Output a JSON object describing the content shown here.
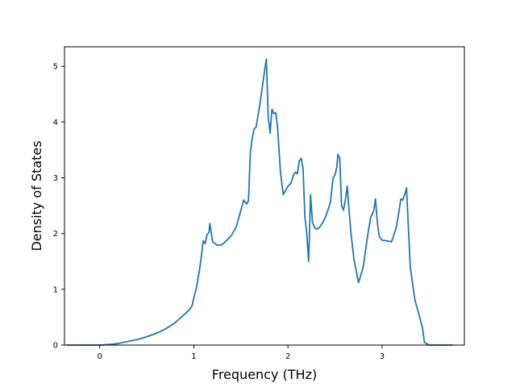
{
  "chart_data": {
    "type": "line",
    "title": "",
    "xlabel": "Frequency (THz)",
    "ylabel": "Density of States",
    "xlim": [
      -0.375,
      3.875
    ],
    "ylim": [
      0,
      5.35
    ],
    "xticks": [
      0,
      1,
      2,
      3
    ],
    "yticks": [
      0,
      1,
      2,
      3,
      4,
      5
    ],
    "grid": false,
    "legend": "none",
    "line_color": "#1f77b4",
    "series": [
      {
        "x": [
          -0.35,
          -0.2,
          0.0,
          0.1,
          0.2,
          0.28,
          0.4,
          0.5,
          0.6,
          0.7,
          0.8,
          0.9,
          0.95,
          0.98,
          1.0,
          1.03,
          1.06,
          1.08,
          1.1,
          1.12,
          1.14,
          1.16,
          1.17,
          1.2,
          1.25,
          1.3,
          1.35,
          1.4,
          1.45,
          1.5,
          1.53,
          1.56,
          1.58,
          1.6,
          1.62,
          1.64,
          1.66,
          1.7,
          1.75,
          1.77,
          1.79,
          1.81,
          1.83,
          1.85,
          1.87,
          1.89,
          1.92,
          1.95,
          2.0,
          2.03,
          2.06,
          2.08,
          2.1,
          2.12,
          2.14,
          2.16,
          2.18,
          2.2,
          2.22,
          2.24,
          2.26,
          2.28,
          2.3,
          2.33,
          2.37,
          2.4,
          2.45,
          2.48,
          2.5,
          2.52,
          2.53,
          2.55,
          2.57,
          2.59,
          2.61,
          2.63,
          2.65,
          2.67,
          2.7,
          2.75,
          2.8,
          2.85,
          2.88,
          2.91,
          2.93,
          2.95,
          2.97,
          3.0,
          3.05,
          3.1,
          3.15,
          3.18,
          3.2,
          3.22,
          3.24,
          3.26,
          3.28,
          3.3,
          3.35,
          3.4,
          3.43,
          3.45,
          3.5,
          3.6,
          3.75
        ],
        "y": [
          0.0,
          0.0,
          0.0,
          0.01,
          0.03,
          0.06,
          0.1,
          0.15,
          0.21,
          0.29,
          0.4,
          0.55,
          0.63,
          0.7,
          0.85,
          1.05,
          1.35,
          1.6,
          1.87,
          1.82,
          1.98,
          2.02,
          2.18,
          1.85,
          1.79,
          1.8,
          1.88,
          1.97,
          2.12,
          2.42,
          2.6,
          2.53,
          2.59,
          3.45,
          3.7,
          3.88,
          3.9,
          4.3,
          4.9,
          5.13,
          4.1,
          3.8,
          4.23,
          4.15,
          4.17,
          3.9,
          3.1,
          2.7,
          2.85,
          2.9,
          3.05,
          3.1,
          3.07,
          3.3,
          3.35,
          3.17,
          2.3,
          2.0,
          1.5,
          2.7,
          2.2,
          2.12,
          2.08,
          2.1,
          2.2,
          2.3,
          2.55,
          3.0,
          3.05,
          3.2,
          3.42,
          3.35,
          2.5,
          2.42,
          2.6,
          2.85,
          2.4,
          2.0,
          1.55,
          1.12,
          1.4,
          2.0,
          2.3,
          2.4,
          2.62,
          2.2,
          1.95,
          1.88,
          1.87,
          1.85,
          2.1,
          2.4,
          2.62,
          2.6,
          2.7,
          2.82,
          2.1,
          1.4,
          0.8,
          0.5,
          0.3,
          0.05,
          0.0,
          0.0,
          0.0
        ]
      }
    ]
  }
}
